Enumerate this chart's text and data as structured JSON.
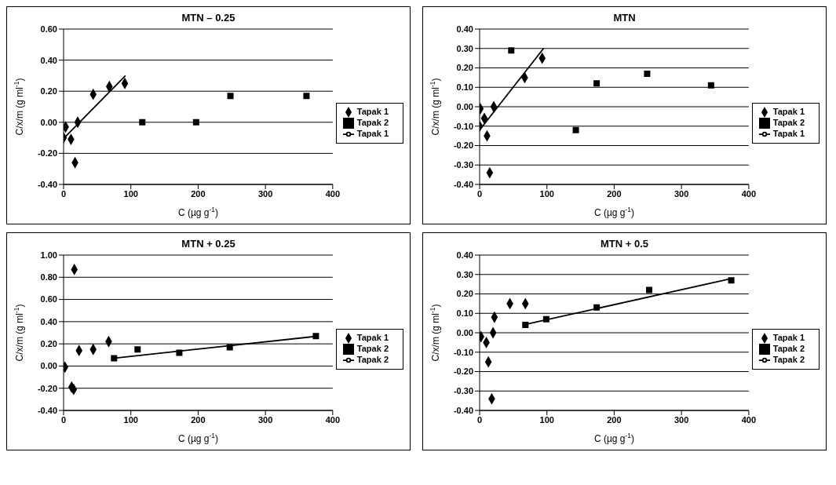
{
  "chart_data": [
    {
      "type": "scatter",
      "title": "MTN – 0.25",
      "xlabel": "C (µg g$^{-1}$)",
      "ylabel": "C/x/m (g ml$^{-1}$)",
      "xlim": [
        0,
        400
      ],
      "xticks": [
        0,
        100,
        200,
        300,
        400
      ],
      "ylim": [
        -0.4,
        0.6
      ],
      "yticks": [
        {
          "value": -0.4,
          "label": "-0.40"
        },
        {
          "value": -0.2,
          "label": "-0.20"
        },
        {
          "value": 0,
          "label": "0.00"
        },
        {
          "value": 0.2,
          "label": "0.20"
        },
        {
          "value": 0.4,
          "label": "0.40"
        },
        {
          "value": 0.6,
          "label": "0.60"
        }
      ],
      "grid": "y",
      "legend": "right",
      "series": [
        {
          "name": "Tapak 1",
          "color": "#000000",
          "marker": "diamond",
          "x": [
            0,
            3,
            11,
            17,
            21,
            44,
            68,
            91
          ],
          "values": [
            -0.1,
            -0.03,
            -0.11,
            -0.26,
            0.0,
            0.18,
            0.23,
            0.25
          ]
        },
        {
          "name": "Tapak 2",
          "color": "#000000",
          "marker": "square",
          "x": [
            117,
            197,
            248,
            361
          ],
          "values": [
            0.0,
            0.0,
            0.17,
            0.17
          ]
        },
        {
          "name": "Tapak 1",
          "type": "line",
          "color": "#000000",
          "marker": "none",
          "x": [
            1,
            92
          ],
          "values": [
            -0.1,
            0.3
          ]
        }
      ]
    },
    {
      "type": "scatter",
      "title": "MTN",
      "xlabel": "C (µg g$^{-1}$)",
      "ylabel": "C/x/m (g ml$^{-1}$)",
      "xlim": [
        0,
        400
      ],
      "xticks": [
        0,
        100,
        200,
        300,
        400
      ],
      "ylim": [
        -0.4,
        0.4
      ],
      "yticks": [
        {
          "value": -0.4,
          "label": "-0.40"
        },
        {
          "value": -0.3,
          "label": "-0.30"
        },
        {
          "value": -0.2,
          "label": "-0.20"
        },
        {
          "value": -0.1,
          "label": "-0.10"
        },
        {
          "value": 0,
          "label": "0.00"
        },
        {
          "value": 0.1,
          "label": "0.10"
        },
        {
          "value": 0.2,
          "label": "0.20"
        },
        {
          "value": 0.3,
          "label": "0.30"
        },
        {
          "value": 0.4,
          "label": "0.40"
        }
      ],
      "grid": "y",
      "legend": "right",
      "series": [
        {
          "name": "Tapak 1",
          "color": "#000000",
          "marker": "diamond",
          "x": [
            0,
            1,
            7,
            11,
            15,
            21,
            67,
            93
          ],
          "values": [
            -0.1,
            -0.01,
            -0.06,
            -0.15,
            -0.34,
            0.0,
            0.15,
            0.25
          ]
        },
        {
          "name": "Tapak 2",
          "color": "#000000",
          "marker": "square",
          "x": [
            47,
            143,
            174,
            249,
            344
          ],
          "values": [
            0.29,
            -0.12,
            0.12,
            0.17,
            0.11
          ]
        },
        {
          "name": "Tapak 1",
          "type": "line",
          "color": "#000000",
          "marker": "none",
          "x": [
            0,
            95
          ],
          "values": [
            -0.12,
            0.3
          ]
        }
      ]
    },
    {
      "type": "scatter",
      "title": "MTN + 0.25",
      "xlabel": "C (µg g$^{-1}$)",
      "ylabel": "C/x/m (g ml$^{-1}$)",
      "xlim": [
        0,
        400
      ],
      "xticks": [
        0,
        100,
        200,
        300,
        400
      ],
      "ylim": [
        -0.4,
        1.0
      ],
      "yticks": [
        {
          "value": -0.4,
          "label": "-0.40"
        },
        {
          "value": -0.2,
          "label": "-0.20"
        },
        {
          "value": 0,
          "label": "0.00"
        },
        {
          "value": 0.2,
          "label": "0.20"
        },
        {
          "value": 0.4,
          "label": "0.40"
        },
        {
          "value": 0.6,
          "label": "0.60"
        },
        {
          "value": 0.8,
          "label": "0.80"
        },
        {
          "value": 1.0,
          "label": "1.00"
        }
      ],
      "grid": "y",
      "legend": "right",
      "series": [
        {
          "name": "Tapak 1",
          "color": "#000000",
          "marker": "diamond",
          "x": [
            2,
            12,
            15,
            16,
            23,
            44,
            67
          ],
          "values": [
            -0.01,
            -0.19,
            -0.21,
            0.87,
            0.14,
            0.15,
            0.22
          ]
        },
        {
          "name": "Tapak 2",
          "color": "#000000",
          "marker": "square",
          "x": [
            75,
            110,
            172,
            247,
            375
          ],
          "values": [
            0.07,
            0.15,
            0.12,
            0.17,
            0.27
          ]
        },
        {
          "name": "Tapak 2",
          "type": "line",
          "color": "#000000",
          "marker": "none",
          "x": [
            73,
            379
          ],
          "values": [
            0.07,
            0.27
          ]
        }
      ]
    },
    {
      "type": "scatter",
      "title": "MTN + 0.5",
      "xlabel": "C (µg g$^{-1}$)",
      "ylabel": "C/x/m (g ml$^{-1}$)",
      "xlim": [
        0,
        400
      ],
      "xticks": [
        0,
        100,
        200,
        300,
        400
      ],
      "ylim": [
        -0.4,
        0.4
      ],
      "yticks": [
        {
          "value": -0.4,
          "label": "-0.40"
        },
        {
          "value": -0.3,
          "label": "-0.30"
        },
        {
          "value": -0.2,
          "label": "-0.20"
        },
        {
          "value": -0.1,
          "label": "-0.10"
        },
        {
          "value": 0,
          "label": "0.00"
        },
        {
          "value": 0.1,
          "label": "0.10"
        },
        {
          "value": 0.2,
          "label": "0.20"
        },
        {
          "value": 0.3,
          "label": "0.30"
        },
        {
          "value": 0.4,
          "label": "0.40"
        }
      ],
      "grid": "y",
      "legend": "right",
      "series": [
        {
          "name": "Tapak 1",
          "color": "#000000",
          "marker": "diamond",
          "x": [
            2,
            10,
            13,
            18,
            20,
            22,
            45,
            68
          ],
          "values": [
            -0.02,
            -0.05,
            -0.15,
            -0.34,
            0.0,
            0.08,
            0.15,
            0.15
          ]
        },
        {
          "name": "Tapak 2",
          "color": "#000000",
          "marker": "square",
          "x": [
            68,
            99,
            174,
            252,
            374
          ],
          "values": [
            0.04,
            0.07,
            0.13,
            0.22,
            0.27
          ]
        },
        {
          "name": "Tapak 2",
          "type": "line",
          "color": "#000000",
          "marker": "none",
          "x": [
            64,
            376
          ],
          "values": [
            0.04,
            0.28
          ]
        }
      ]
    }
  ]
}
